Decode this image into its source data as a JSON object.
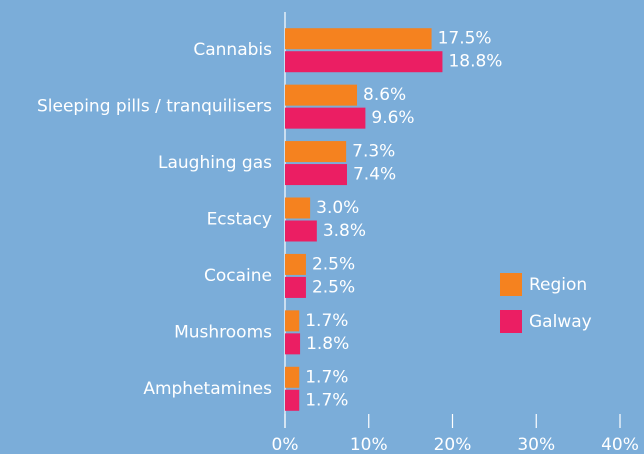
{
  "chart_data": {
    "type": "barh",
    "categories": [
      "Cannabis",
      "Sleeping pills / tranquilisers",
      "Laughing gas",
      "Ecstacy",
      "Cocaine",
      "Mushrooms",
      "Amphetamines"
    ],
    "series": [
      {
        "name": "Region",
        "color": "#f5821f",
        "values": [
          17.5,
          8.6,
          7.3,
          3.0,
          2.5,
          1.7,
          1.7
        ],
        "value_labels": [
          "17.5%",
          "8.6%",
          "7.3%",
          "3.0%",
          "2.5%",
          "1.7%",
          "1.7%"
        ]
      },
      {
        "name": "Galway",
        "color": "#eb1e63",
        "values": [
          18.8,
          9.6,
          7.4,
          3.8,
          2.5,
          1.8,
          1.7
        ],
        "value_labels": [
          "18.8%",
          "9.6%",
          "7.4%",
          "3.8%",
          "2.5%",
          "1.8%",
          "1.7%"
        ]
      }
    ],
    "xlim": [
      0,
      40
    ],
    "xticks": [
      {
        "value": 0,
        "label": "0%"
      },
      {
        "value": 10,
        "label": "10%"
      },
      {
        "value": 20,
        "label": "20%"
      },
      {
        "value": 30,
        "label": "30%"
      },
      {
        "value": 40,
        "label": "40%"
      }
    ],
    "legend": "right"
  }
}
